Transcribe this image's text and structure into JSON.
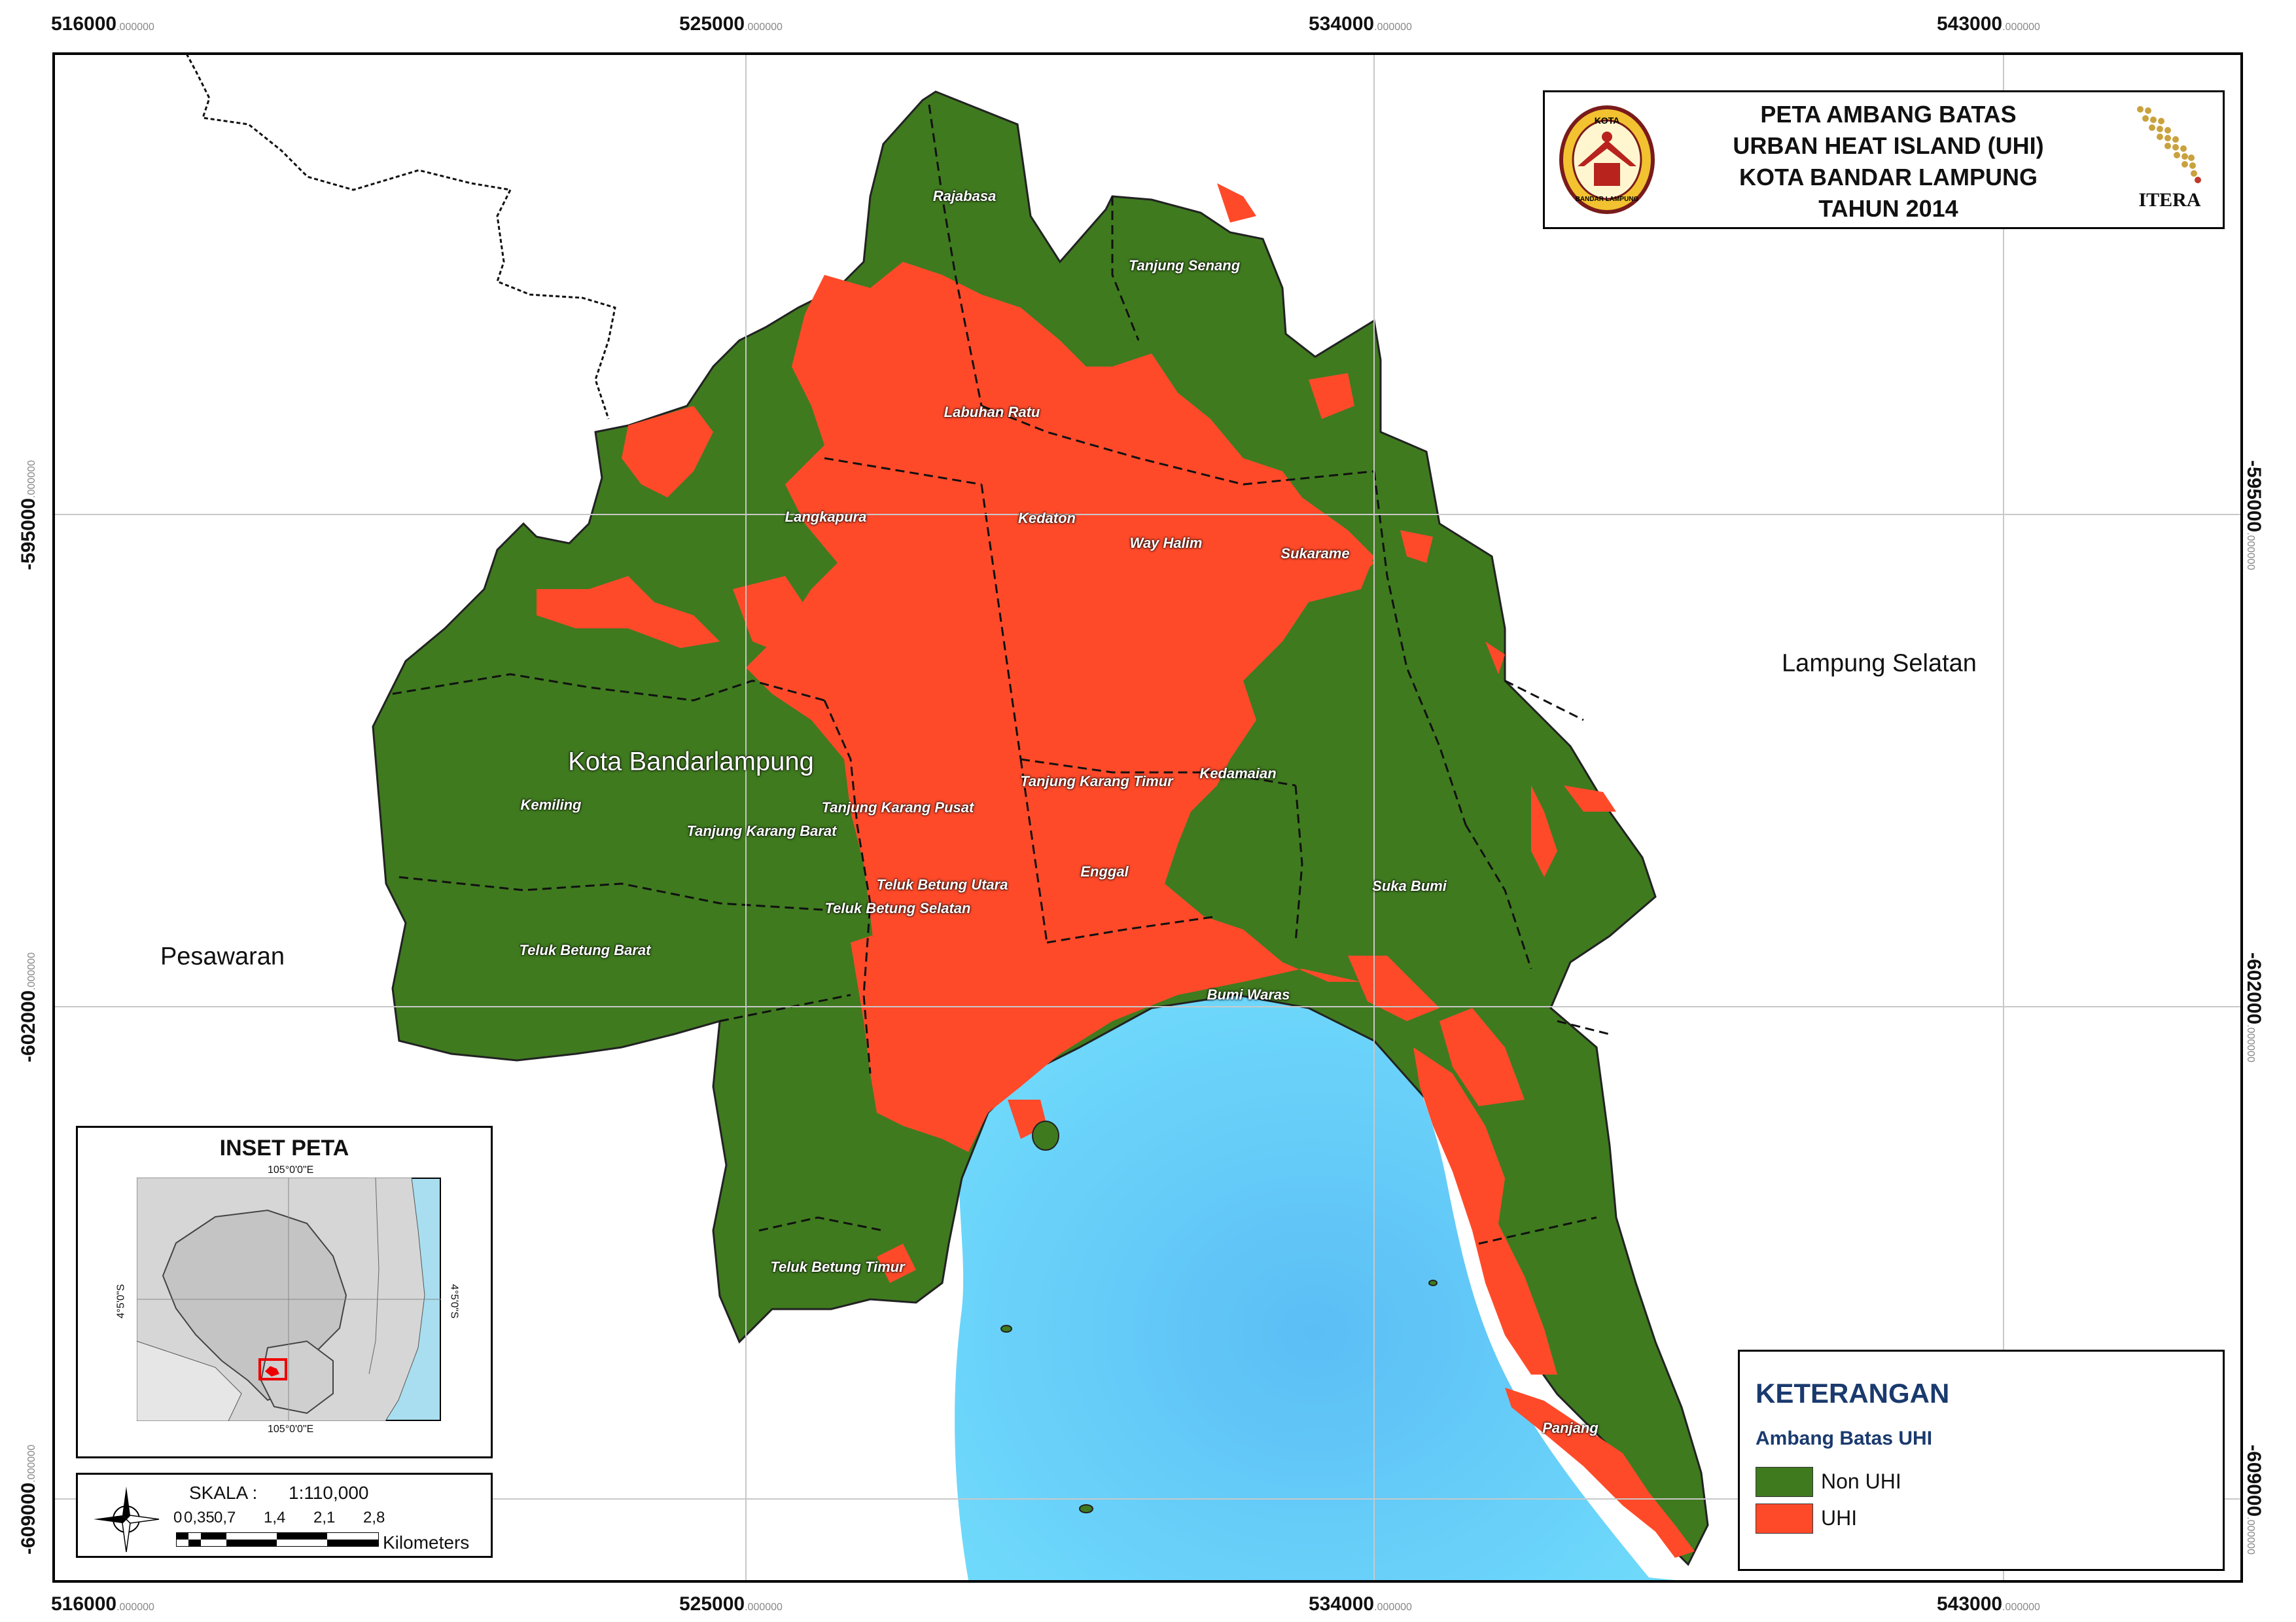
{
  "title": {
    "line1": "PETA AMBANG BATAS",
    "line2": "URBAN HEAT ISLAND (UHI)",
    "line3": "KOTA BANDAR LAMPUNG",
    "line4": "TAHUN 2014"
  },
  "logos": {
    "left": "kota-bandar-lampung-emblem",
    "left_text_top": "KOTA",
    "left_text_bottom": "BANDAR LAMPUNG",
    "right": "itera-logo",
    "right_text": "ITERA"
  },
  "grid": {
    "x_labels": [
      "516000",
      "525000",
      "534000",
      "543000"
    ],
    "x_suffix": ".000000",
    "y_labels": [
      "-595000",
      "-602000",
      "-609000"
    ],
    "y_suffix": ".000000"
  },
  "regions": {
    "city": "Kota Bandarlampung",
    "west": "Pesawaran",
    "east": "Lampung Selatan"
  },
  "districts": [
    "Rajabasa",
    "Tanjung Senang",
    "Labuhan Ratu",
    "Langkapura",
    "Kedaton",
    "Way Halim",
    "Sukarame",
    "Kemiling",
    "Tanjung Karang Pusat",
    "Tanjung Karang Barat",
    "Tanjung Karang Timur",
    "Kedamaian",
    "Teluk Betung Utara",
    "Enggal",
    "Teluk Betung Selatan",
    "Suka Bumi",
    "Teluk Betung Barat",
    "Bumi Waras",
    "Teluk Betung Timur",
    "Panjang"
  ],
  "legend": {
    "title": "KETERANGAN",
    "subtitle": "Ambang Batas UHI",
    "items": [
      {
        "label": "Non UHI",
        "color": "#3f7a1f"
      },
      {
        "label": "UHI",
        "color": "#ff4a2a"
      }
    ]
  },
  "inset": {
    "title": "INSET PETA",
    "lon_label": "105°0'0\"E",
    "lat_label": "4°5'0\"S"
  },
  "scale": {
    "label": "SKALA :",
    "ratio": "1:110,000",
    "ticks": [
      "0",
      "0,35",
      "0,7",
      "1,4",
      "2,1",
      "2,8"
    ],
    "unit": "Kilometers"
  },
  "colors": {
    "non_uhi": "#3f7a1f",
    "uhi": "#ff4a2a",
    "sea": "#5cc6f5",
    "frame": "#000000"
  }
}
